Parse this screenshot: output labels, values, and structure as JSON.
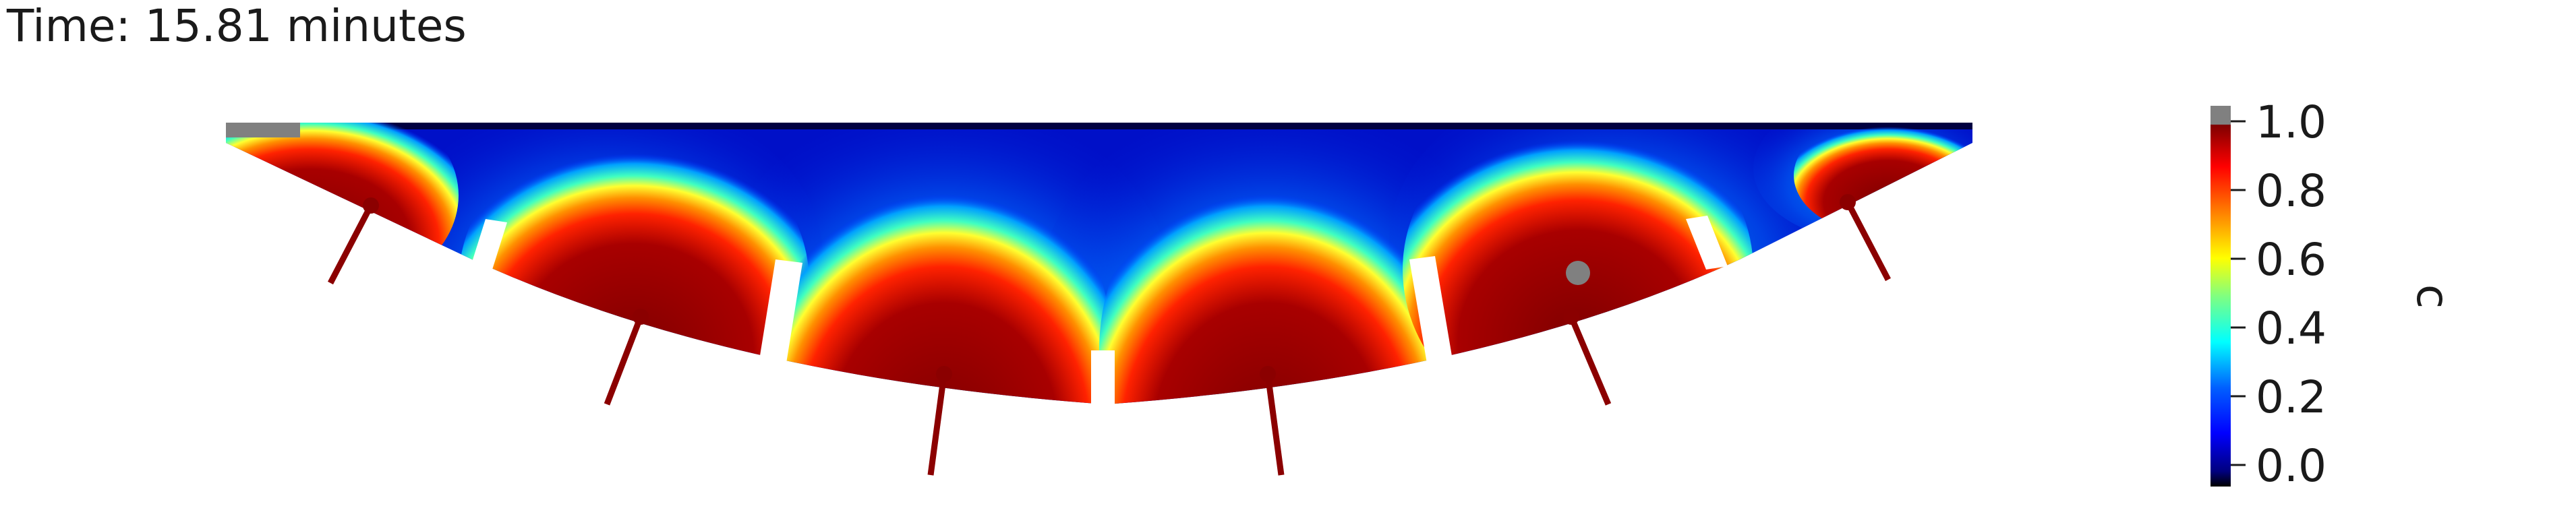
{
  "header": {
    "time_label": "Time: 15.81 minutes"
  },
  "colorbar": {
    "title": "c",
    "ticks": [
      "1.0",
      "0.8",
      "0.6",
      "0.4",
      "0.2",
      "0.0"
    ],
    "colors": [
      "#000000",
      "#00007f",
      "#0000ff",
      "#0080ff",
      "#00ffff",
      "#80ff80",
      "#ffff00",
      "#ff8000",
      "#ff0000",
      "#7f0000",
      "#808080"
    ]
  }
}
